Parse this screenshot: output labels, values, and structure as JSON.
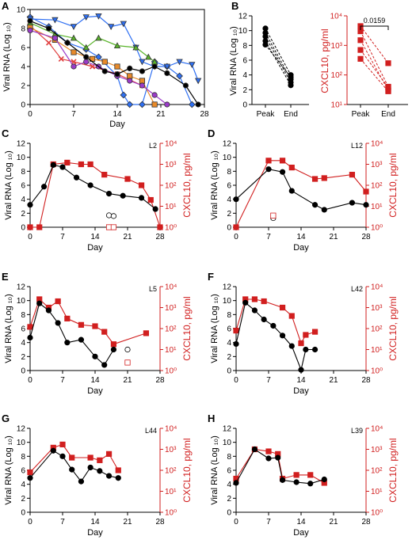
{
  "colors": {
    "black": "#000000",
    "red": "#d11f1f"
  },
  "panels": {
    "A": {
      "letter": "A",
      "ylabel": "Viral RNA (Log ₁₀)",
      "xlabel": "Day"
    },
    "B": {
      "letter": "B",
      "ylabel_left": "Viral RNA (Log ₁₀)",
      "ylabel_right": "CXCL10, pg/ml",
      "pvalue": "0.0159"
    },
    "C": {
      "letter": "C",
      "label": "L2",
      "ylabel_left": "Viral RNA (Log ₁₀)",
      "ylabel_right": "CXCL10, pg/ml",
      "xlabel": "Day"
    },
    "D": {
      "letter": "D",
      "label": "L12",
      "ylabel_left": "Viral RNA (Log ₁₀)",
      "ylabel_right": "CXCL10, pg/ml",
      "xlabel": "Day"
    },
    "E": {
      "letter": "E",
      "label": "L5",
      "ylabel_left": "Viral RNA (Log ₁₀)",
      "ylabel_right": "CXCL10, pg/ml",
      "xlabel": "Day"
    },
    "F": {
      "letter": "F",
      "label": "L42",
      "ylabel_left": "Viral RNA (Log ₁₀)",
      "ylabel_right": "CXCL10, pg/ml",
      "xlabel": "Day"
    },
    "G": {
      "letter": "G",
      "label": "L44",
      "ylabel_left": "Viral RNA (Log ₁₀)",
      "ylabel_right": "CXCL10, pg/ml",
      "xlabel": "Day"
    },
    "H": {
      "letter": "H",
      "label": "L39",
      "ylabel_left": "Viral RNA (Log ₁₀)",
      "ylabel_right": "CXCL10, pg/ml",
      "xlabel": "Day"
    }
  },
  "chart_data": [
    {
      "panel": "A",
      "type": "line",
      "xlabel": "Day",
      "ylabel": "Viral RNA (Log ₁₀)",
      "xlim": [
        0,
        28
      ],
      "ylim": [
        0,
        10
      ],
      "xticks": [
        "0",
        "7",
        "14",
        "21",
        "28"
      ],
      "yticks": [
        "0",
        "2",
        "4",
        "6",
        "8",
        "10"
      ],
      "series": [
        {
          "color": "#2e6ff2",
          "marker": "diamond",
          "points": [
            [
              0,
              9.2
            ],
            [
              3,
              8.2
            ],
            [
              6,
              6.5
            ],
            [
              9,
              5.8
            ],
            [
              11,
              5.0
            ],
            [
              14,
              3.0
            ],
            [
              15,
              1.0
            ],
            [
              16,
              0
            ],
            [
              18,
              0
            ],
            [
              20,
              4.5
            ],
            [
              22,
              4.0
            ],
            [
              24,
              3.0
            ],
            [
              26,
              0
            ]
          ]
        },
        {
          "color": "#2e6ff2",
          "marker": "triangle-down",
          "points": [
            [
              0,
              9.0
            ],
            [
              4,
              8.9
            ],
            [
              7,
              8.2
            ],
            [
              9,
              9.2
            ],
            [
              11,
              9.3
            ],
            [
              13,
              8.2
            ],
            [
              15,
              8.5
            ],
            [
              17,
              6.0
            ],
            [
              18,
              4.5
            ],
            [
              20,
              4.0
            ],
            [
              22,
              4.0
            ],
            [
              24,
              4.5
            ],
            [
              26,
              4.2
            ],
            [
              27,
              2.5
            ]
          ]
        },
        {
          "color": "#e04040",
          "marker": "x",
          "points": [
            [
              0,
              8.3
            ],
            [
              3,
              6.5
            ],
            [
              5,
              4.8
            ],
            [
              7,
              4.5
            ],
            [
              10,
              4.0
            ],
            [
              14,
              3.2
            ],
            [
              18,
              2.0
            ]
          ]
        },
        {
          "color": "#5ab42b",
          "marker": "triangle-up",
          "points": [
            [
              0,
              8.6
            ],
            [
              4,
              7.4
            ],
            [
              7,
              7.0
            ],
            [
              9,
              6.0
            ],
            [
              11,
              7.0
            ],
            [
              14,
              6.2
            ],
            [
              17,
              6.0
            ],
            [
              19,
              5.0
            ],
            [
              20,
              4.5
            ]
          ]
        },
        {
          "color": "#e88a2a",
          "marker": "square",
          "points": [
            [
              0,
              8.1
            ],
            [
              4,
              6.8
            ],
            [
              7,
              5.5
            ],
            [
              10,
              4.8
            ],
            [
              12,
              4.5
            ],
            [
              14,
              4.0
            ],
            [
              16,
              3.0
            ],
            [
              18,
              2.5
            ],
            [
              20,
              0
            ]
          ]
        },
        {
          "color": "#9b3bc9",
          "marker": "circle",
          "points": [
            [
              0,
              7.8
            ],
            [
              4,
              7.0
            ],
            [
              7,
              4.0
            ],
            [
              9,
              4.5
            ],
            [
              11,
              4.0
            ],
            [
              14,
              3.0
            ],
            [
              16,
              2.5
            ],
            [
              18,
              2.0
            ],
            [
              20,
              1.0
            ],
            [
              22,
              0
            ]
          ]
        },
        {
          "color": "#000000",
          "marker": "circle",
          "points": [
            [
              0,
              8.8
            ],
            [
              3,
              8.0
            ],
            [
              6,
              6.5
            ],
            [
              9,
              5.0
            ],
            [
              12,
              3.5
            ],
            [
              14,
              3.2
            ],
            [
              16,
              3.8
            ],
            [
              18,
              3.5
            ],
            [
              20,
              4.0
            ],
            [
              22,
              3.3
            ],
            [
              25,
              2.0
            ],
            [
              27,
              0
            ]
          ]
        }
      ]
    },
    {
      "panel": "B",
      "type": "line",
      "subplots": [
        {
          "ylabel": "Viral RNA (Log ₁₀)",
          "categories": [
            "Peak",
            "End"
          ],
          "ylim": [
            0,
            12
          ],
          "yticks": [
            "0",
            "2",
            "4",
            "6",
            "8",
            "10",
            "12"
          ],
          "pairs": [
            [
              10.3,
              4.0
            ],
            [
              9.7,
              3.4
            ],
            [
              9.2,
              3.0
            ],
            [
              8.6,
              2.6
            ],
            [
              8.1,
              3.7
            ]
          ]
        },
        {
          "ylabel": "CXCL10, pg/ml",
          "categories": [
            "Peak",
            "End"
          ],
          "yscale": "log",
          "ylim": [
            10,
            10000
          ],
          "yticks": [
            "10¹",
            "10²",
            "10³",
            "10⁴"
          ],
          "pairs": [
            [
              4500,
              250
            ],
            [
              3000,
              40
            ],
            [
              1500,
              30
            ],
            [
              700,
              38
            ],
            [
              350,
              28
            ]
          ],
          "annotation": "0.0159"
        }
      ]
    },
    {
      "panel": "C",
      "type": "line",
      "label": "L2",
      "xlabel": "Day",
      "ylabel": "Viral RNA (Log ₁₀)",
      "ylabel_right": "CXCL10, pg/ml",
      "xlim": [
        0,
        28
      ],
      "ylim": [
        0,
        12
      ],
      "ylim_right": [
        1,
        10000
      ],
      "yscale_right": "log",
      "xticks": [
        "0",
        "7",
        "14",
        "21",
        "28"
      ],
      "yticks": [
        "0",
        "2",
        "4",
        "6",
        "8",
        "10",
        "12"
      ],
      "yticks_right": [
        "10⁰",
        "10¹",
        "10²",
        "10³",
        "10⁴"
      ],
      "viral": [
        [
          0,
          3.2
        ],
        [
          3,
          5.8
        ],
        [
          5,
          8.9
        ],
        [
          7,
          8.6
        ],
        [
          10,
          7.1
        ],
        [
          13,
          6.0
        ],
        [
          17,
          4.8
        ],
        [
          20,
          4.5
        ],
        [
          24,
          4.2
        ],
        [
          27,
          2.6
        ]
      ],
      "viral_open": [
        [
          17,
          1.7
        ],
        [
          18,
          1.6
        ]
      ],
      "cxcl10": [
        [
          0,
          1
        ],
        [
          2,
          1
        ],
        [
          5,
          1000
        ],
        [
          8,
          1200
        ],
        [
          11,
          1000
        ],
        [
          13,
          1000
        ],
        [
          16,
          320
        ],
        [
          21,
          200
        ],
        [
          24,
          100
        ],
        [
          26,
          20
        ],
        [
          28,
          1
        ]
      ],
      "cxcl10_open": [
        [
          17,
          1
        ],
        [
          18,
          1
        ]
      ]
    },
    {
      "panel": "D",
      "type": "line",
      "label": "L12",
      "xlabel": "Day",
      "ylabel": "Viral RNA (Log ₁₀)",
      "ylabel_right": "CXCL10, pg/ml",
      "xlim": [
        0,
        28
      ],
      "ylim": [
        0,
        12
      ],
      "ylim_right": [
        1,
        10000
      ],
      "yscale_right": "log",
      "xticks": [
        "0",
        "7",
        "14",
        "21",
        "28"
      ],
      "yticks": [
        "0",
        "2",
        "4",
        "6",
        "8",
        "10",
        "12"
      ],
      "yticks_right": [
        "10⁰",
        "10¹",
        "10²",
        "10³",
        "10⁴"
      ],
      "viral": [
        [
          0,
          4.0
        ],
        [
          7,
          8.3
        ],
        [
          10,
          7.9
        ],
        [
          12,
          5.2
        ],
        [
          17,
          3.2
        ],
        [
          19,
          2.5
        ],
        [
          25,
          3.5
        ],
        [
          28,
          3.2
        ]
      ],
      "viral_open": [
        [
          8,
          1.3
        ]
      ],
      "cxcl10": [
        [
          0,
          1
        ],
        [
          7,
          1500
        ],
        [
          10,
          1500
        ],
        [
          12,
          700
        ],
        [
          17,
          200
        ],
        [
          19,
          220
        ],
        [
          25,
          320
        ],
        [
          28,
          50
        ]
      ],
      "cxcl10_open": [
        [
          8,
          3.6
        ]
      ]
    },
    {
      "panel": "E",
      "type": "line",
      "label": "L5",
      "xlabel": "Day",
      "ylabel": "Viral RNA (Log ₁₀)",
      "ylabel_right": "CXCL10, pg/ml",
      "xlim": [
        0,
        28
      ],
      "ylim": [
        0,
        12
      ],
      "ylim_right": [
        1,
        10000
      ],
      "yscale_right": "log",
      "xticks": [
        "0",
        "7",
        "14",
        "21",
        "28"
      ],
      "yticks": [
        "0",
        "2",
        "4",
        "6",
        "8",
        "10",
        "12"
      ],
      "yticks_right": [
        "10⁰",
        "10¹",
        "10²",
        "10³",
        "10⁴"
      ],
      "viral": [
        [
          0,
          4.7
        ],
        [
          2,
          9.6
        ],
        [
          4,
          8.6
        ],
        [
          6,
          6.8
        ],
        [
          8,
          4.0
        ],
        [
          11,
          4.4
        ],
        [
          14,
          2.0
        ],
        [
          16,
          0.8
        ],
        [
          18,
          3.0
        ]
      ],
      "viral_open": [
        [
          21,
          3.0
        ]
      ],
      "cxcl10": [
        [
          0,
          120
        ],
        [
          2,
          2500
        ],
        [
          4,
          1000
        ],
        [
          6,
          2000
        ],
        [
          8,
          300
        ],
        [
          11,
          150
        ],
        [
          14,
          130
        ],
        [
          16,
          70
        ],
        [
          18,
          18
        ],
        [
          25,
          60
        ]
      ],
      "cxcl10_open": [
        [
          21,
          2.4
        ]
      ]
    },
    {
      "panel": "F",
      "type": "line",
      "label": "L42",
      "xlabel": "Day",
      "ylabel": "Viral RNA (Log ₁₀)",
      "ylabel_right": "CXCL10, pg/ml",
      "xlim": [
        0,
        28
      ],
      "ylim": [
        0,
        12
      ],
      "ylim_right": [
        1,
        10000
      ],
      "yscale_right": "log",
      "xticks": [
        "0",
        "7",
        "14",
        "21",
        "28"
      ],
      "yticks": [
        "0",
        "2",
        "4",
        "6",
        "8",
        "10",
        "12"
      ],
      "yticks_right": [
        "10⁰",
        "10¹",
        "10²",
        "10³",
        "10⁴"
      ],
      "viral": [
        [
          0,
          3.8
        ],
        [
          2,
          9.7
        ],
        [
          4,
          8.6
        ],
        [
          6,
          7.3
        ],
        [
          8,
          6.4
        ],
        [
          10,
          5.0
        ],
        [
          12,
          3.5
        ],
        [
          14,
          0.1
        ],
        [
          15,
          3.0
        ],
        [
          17,
          3.0
        ]
      ],
      "cxcl10": [
        [
          0,
          80
        ],
        [
          2,
          2500
        ],
        [
          4,
          2500
        ],
        [
          6,
          2000
        ],
        [
          10,
          1000
        ],
        [
          12,
          400
        ],
        [
          14,
          20
        ],
        [
          15,
          50
        ],
        [
          17,
          70
        ]
      ]
    },
    {
      "panel": "G",
      "type": "line",
      "label": "L44",
      "xlabel": "Day",
      "ylabel": "Viral RNA (Log ₁₀)",
      "ylabel_right": "CXCL10, pg/ml",
      "xlim": [
        0,
        28
      ],
      "ylim": [
        0,
        12
      ],
      "ylim_right": [
        1,
        10000
      ],
      "yscale_right": "log",
      "xticks": [
        "0",
        "7",
        "14",
        "21",
        "28"
      ],
      "yticks": [
        "0",
        "2",
        "4",
        "6",
        "8",
        "10",
        "12"
      ],
      "yticks_right": [
        "10⁰",
        "10¹",
        "10²",
        "10³",
        "10⁴"
      ],
      "viral": [
        [
          0,
          4.9
        ],
        [
          5,
          8.8
        ],
        [
          7,
          8.0
        ],
        [
          9,
          6.1
        ],
        [
          11,
          4.4
        ],
        [
          13,
          6.4
        ],
        [
          15,
          5.9
        ],
        [
          17,
          5.2
        ],
        [
          19,
          4.9
        ]
      ],
      "cxcl10": [
        [
          0,
          80
        ],
        [
          5,
          1200
        ],
        [
          7,
          1700
        ],
        [
          9,
          400
        ],
        [
          13,
          400
        ],
        [
          15,
          300
        ],
        [
          17,
          600
        ],
        [
          19,
          100
        ]
      ]
    },
    {
      "panel": "H",
      "type": "line",
      "label": "L39",
      "xlabel": "Day",
      "ylabel": "Viral RNA (Log ₁₀)",
      "ylabel_right": "CXCL10, pg/ml",
      "xlim": [
        0,
        28
      ],
      "ylim": [
        0,
        12
      ],
      "ylim_right": [
        1,
        10000
      ],
      "yscale_right": "log",
      "xticks": [
        "0",
        "7",
        "14",
        "21",
        "28"
      ],
      "yticks": [
        "0",
        "2",
        "4",
        "6",
        "8",
        "10",
        "12"
      ],
      "yticks_right": [
        "10⁰",
        "10¹",
        "10²",
        "10³",
        "10⁴"
      ],
      "viral": [
        [
          0,
          4.2
        ],
        [
          4,
          9.0
        ],
        [
          7,
          7.7
        ],
        [
          9,
          7.8
        ],
        [
          10,
          4.6
        ],
        [
          13,
          4.3
        ],
        [
          16,
          4.1
        ],
        [
          19,
          4.7
        ]
      ],
      "cxcl10": [
        [
          0,
          40
        ],
        [
          4,
          1000
        ],
        [
          7,
          800
        ],
        [
          9,
          600
        ],
        [
          10,
          40
        ],
        [
          13,
          60
        ],
        [
          16,
          60
        ],
        [
          19,
          25
        ]
      ]
    }
  ]
}
